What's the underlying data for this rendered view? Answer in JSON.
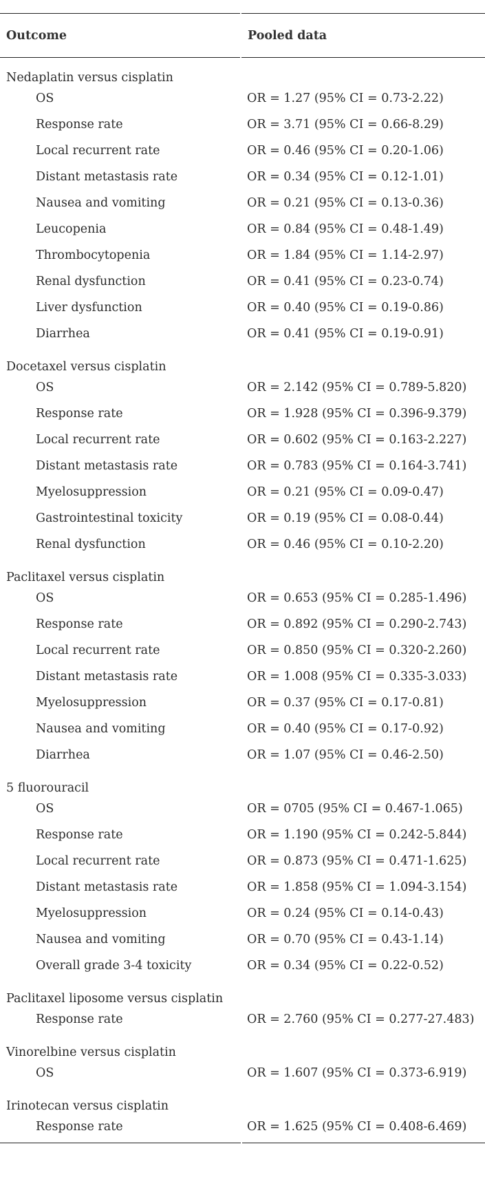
{
  "header": {
    "outcome": "Outcome",
    "pooled": "Pooled data"
  },
  "groups": [
    {
      "title": "Nedaplatin versus cisplatin",
      "rows": [
        {
          "outcome": "OS",
          "pooled": "OR = 1.27 (95% CI = 0.73-2.22)"
        },
        {
          "outcome": "Response rate",
          "pooled": "OR = 3.71 (95% CI = 0.66-8.29)"
        },
        {
          "outcome": "Local recurrent rate",
          "pooled": "OR = 0.46 (95% CI = 0.20-1.06)"
        },
        {
          "outcome": "Distant metastasis rate",
          "pooled": "OR = 0.34 (95% CI = 0.12-1.01)"
        },
        {
          "outcome": "Nausea and vomiting",
          "pooled": "OR = 0.21 (95% CI = 0.13-0.36)"
        },
        {
          "outcome": "Leucopenia",
          "pooled": "OR = 0.84 (95% CI = 0.48-1.49)"
        },
        {
          "outcome": "Thrombocytopenia",
          "pooled": "OR = 1.84 (95% CI = 1.14-2.97)"
        },
        {
          "outcome": "Renal dysfunction",
          "pooled": "OR = 0.41 (95% CI = 0.23-0.74)"
        },
        {
          "outcome": "Liver dysfunction",
          "pooled": "OR = 0.40 (95% CI = 0.19-0.86)"
        },
        {
          "outcome": "Diarrhea",
          "pooled": "OR = 0.41 (95% CI = 0.19-0.91)"
        }
      ]
    },
    {
      "title": "Docetaxel versus cisplatin",
      "rows": [
        {
          "outcome": "OS",
          "pooled": "OR = 2.142 (95% CI = 0.789-5.820)"
        },
        {
          "outcome": "Response rate",
          "pooled": "OR = 1.928 (95% CI = 0.396-9.379)"
        },
        {
          "outcome": "Local recurrent rate",
          "pooled": "OR = 0.602 (95% CI = 0.163-2.227)"
        },
        {
          "outcome": "Distant metastasis rate",
          "pooled": "OR = 0.783 (95% CI = 0.164-3.741)"
        },
        {
          "outcome": "Myelosuppression",
          "pooled": "OR = 0.21 (95% CI = 0.09-0.47)"
        },
        {
          "outcome": "Gastrointestinal toxicity",
          "pooled": "OR = 0.19 (95% CI = 0.08-0.44)"
        },
        {
          "outcome": "Renal dysfunction",
          "pooled": "OR = 0.46 (95% CI = 0.10-2.20)"
        }
      ]
    },
    {
      "title": "Paclitaxel versus cisplatin",
      "rows": [
        {
          "outcome": "OS",
          "pooled": "OR = 0.653 (95% CI = 0.285-1.496)"
        },
        {
          "outcome": "Response rate",
          "pooled": "OR = 0.892 (95% CI = 0.290-2.743)"
        },
        {
          "outcome": "Local recurrent rate",
          "pooled": "OR = 0.850 (95% CI = 0.320-2.260)"
        },
        {
          "outcome": "Distant metastasis rate",
          "pooled": "OR = 1.008 (95% CI = 0.335-3.033)"
        },
        {
          "outcome": "Myelosuppression",
          "pooled": "OR = 0.37 (95% CI = 0.17-0.81)"
        },
        {
          "outcome": "Nausea and vomiting",
          "pooled": "OR = 0.40 (95% CI = 0.17-0.92)"
        },
        {
          "outcome": "Diarrhea",
          "pooled": "OR = 1.07 (95% CI = 0.46-2.50)"
        }
      ]
    },
    {
      "title": "5 fluorouracil",
      "rows": [
        {
          "outcome": "OS",
          "pooled": "OR = 0705 (95% CI = 0.467-1.065)"
        },
        {
          "outcome": "Response rate",
          "pooled": "OR = 1.190 (95% CI = 0.242-5.844)"
        },
        {
          "outcome": "Local recurrent rate",
          "pooled": "OR = 0.873 (95% CI = 0.471-1.625)"
        },
        {
          "outcome": "Distant metastasis rate",
          "pooled": "OR = 1.858 (95% CI = 1.094-3.154)"
        },
        {
          "outcome": "Myelosuppression",
          "pooled": "OR = 0.24 (95% CI = 0.14-0.43)"
        },
        {
          "outcome": "Nausea and vomiting",
          "pooled": "OR = 0.70 (95% CI = 0.43-1.14)"
        },
        {
          "outcome": "Overall grade 3-4 toxicity",
          "pooled": "OR = 0.34 (95% CI = 0.22-0.52)"
        }
      ]
    },
    {
      "title": "Paclitaxel liposome versus cisplatin",
      "rows": [
        {
          "outcome": "Response rate",
          "pooled": "OR = 2.760 (95% CI = 0.277-27.483)"
        }
      ]
    },
    {
      "title": "Vinorelbine versus cisplatin",
      "rows": [
        {
          "outcome": "OS",
          "pooled": "OR = 1.607 (95% CI = 0.373-6.919)"
        }
      ]
    },
    {
      "title": "Irinotecan versus cisplatin",
      "rows": [
        {
          "outcome": "Response rate",
          "pooled": "OR = 1.625 (95% CI = 0.408-6.469)"
        }
      ]
    }
  ]
}
